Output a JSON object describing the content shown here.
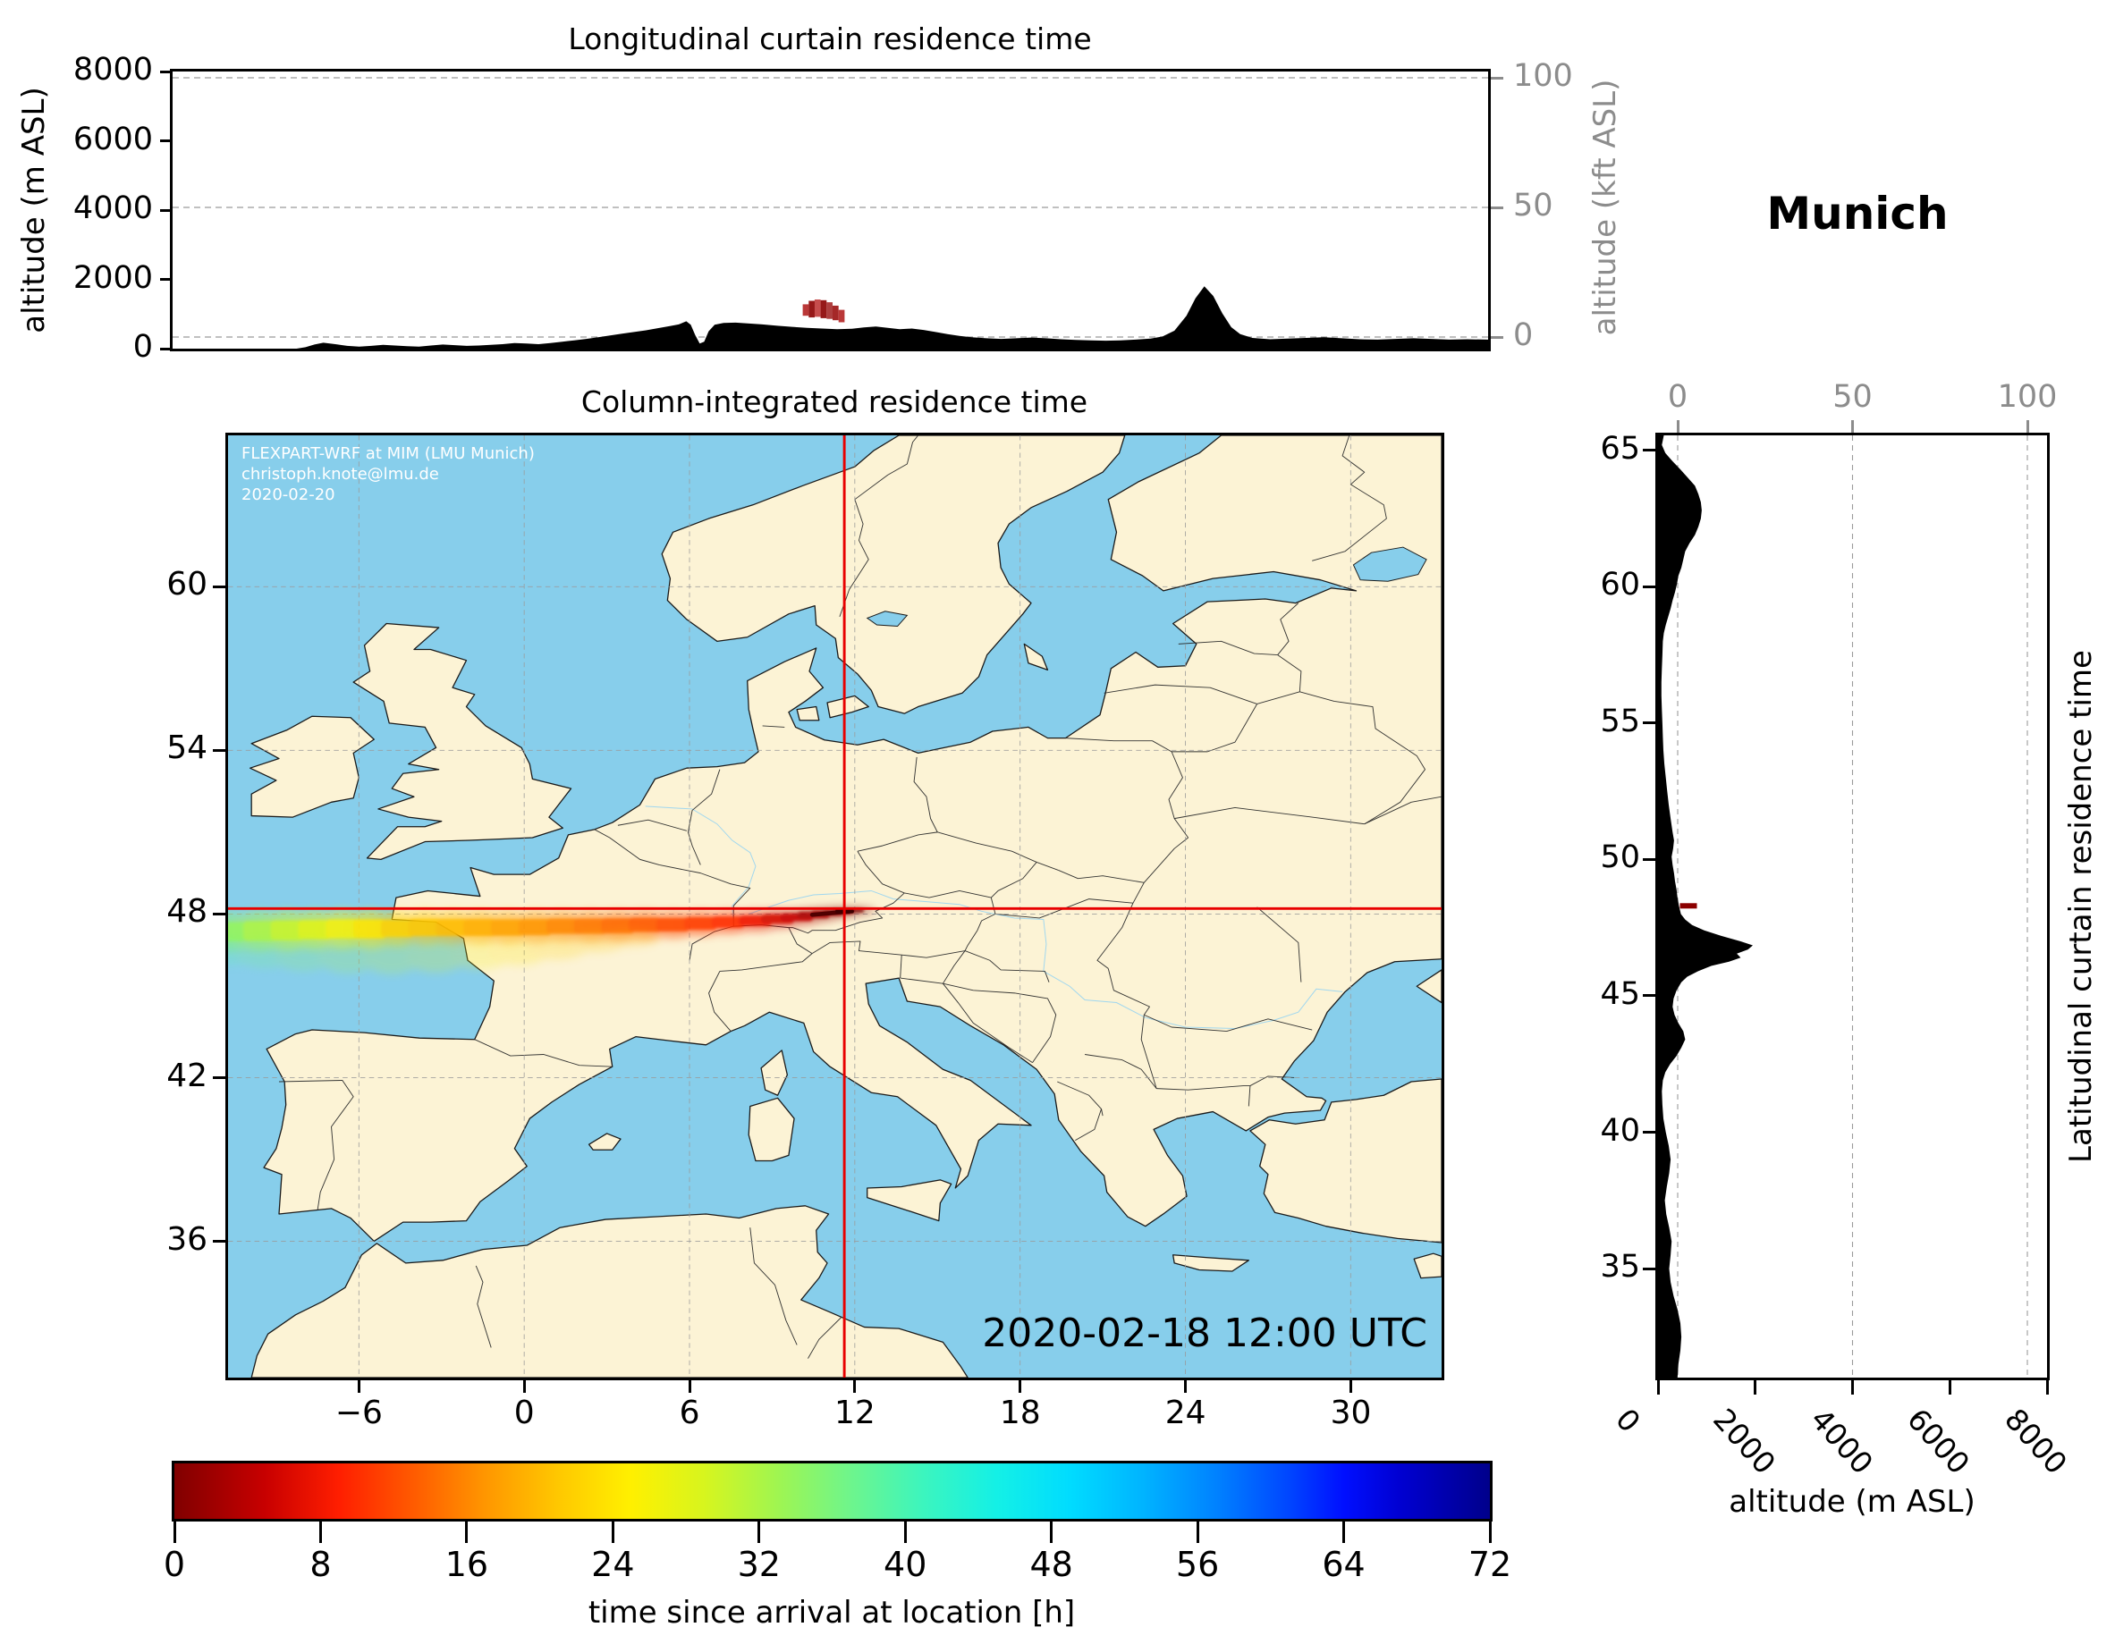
{
  "figure": {
    "station_label": "Munich",
    "timestamp": "2020-02-18 12:00 UTC",
    "attribution": [
      "FLEXPART-WRF at MIM (LMU Munich)",
      "christoph.knote@lmu.de",
      "2020-02-20"
    ]
  },
  "top_panel": {
    "title": "Longitudinal curtain residence time",
    "ylabel_left": "altitude (m ASL)",
    "ylabel_right": "altitude (kft ASL)",
    "yticks_left": [
      8000,
      6000,
      4000,
      2000,
      0
    ],
    "yticks_right": [
      100,
      50,
      0
    ]
  },
  "map_panel": {
    "title": "Column-integrated residence time",
    "lon_ticks": [
      -6,
      0,
      6,
      12,
      18,
      24,
      30
    ],
    "lat_ticks": [
      60,
      54,
      48,
      42,
      36
    ]
  },
  "right_panel": {
    "ylabel": "Latitudinal curtain residence time",
    "xlabel": "altitude (m ASL)",
    "kft_ticks": [
      0,
      50,
      100
    ],
    "lat_ticks": [
      65,
      60,
      55,
      50,
      45,
      40,
      35
    ],
    "alt_ticks": [
      0,
      2000,
      4000,
      6000,
      8000
    ]
  },
  "colorbar": {
    "label": "time since arrival at location [h]",
    "ticks": [
      0,
      8,
      16,
      24,
      32,
      40,
      48,
      56,
      64,
      72
    ],
    "range": [
      0,
      72
    ],
    "stops": [
      [
        0,
        "#800000"
      ],
      [
        5,
        "#c80000"
      ],
      [
        9,
        "#ff1e00"
      ],
      [
        13,
        "#ff5a00"
      ],
      [
        17,
        "#ff9600"
      ],
      [
        21,
        "#ffc800"
      ],
      [
        25,
        "#fff000"
      ],
      [
        29,
        "#d7f51e"
      ],
      [
        33,
        "#a0f550"
      ],
      [
        37,
        "#6ef58c"
      ],
      [
        41,
        "#3cf5be"
      ],
      [
        45,
        "#14f0e6"
      ],
      [
        49,
        "#00dcff"
      ],
      [
        53,
        "#00b4ff"
      ],
      [
        57,
        "#0082ff"
      ],
      [
        61,
        "#0046ff"
      ],
      [
        64,
        "#000fff"
      ],
      [
        67,
        "#0000d2"
      ],
      [
        72,
        "#00008b"
      ]
    ]
  },
  "colors": {
    "ocean": "#87ceeb",
    "land": "#fcf3d5",
    "coast": "#1a1a1a",
    "grid": "#9a9a9a",
    "crosshair": "#e80000",
    "terrain": "#000000",
    "kft_axis": "#8c8c8c",
    "release": "#8b0000"
  },
  "chart_data": [
    {
      "id": "longitudinal_curtain_residence_time",
      "type": "area",
      "title": "Longitudinal curtain residence time",
      "x_axis": "longitude (deg E)",
      "x_range": [
        -10.75,
        33.3
      ],
      "y_range_m": [
        0,
        8000
      ],
      "kft_ticks": [
        0,
        50,
        100
      ],
      "terrain_m": [
        [
          -10.75,
          0
        ],
        [
          -6.6,
          0
        ],
        [
          -6.3,
          40
        ],
        [
          -6.0,
          120
        ],
        [
          -5.7,
          170
        ],
        [
          -5.3,
          130
        ],
        [
          -4.9,
          80
        ],
        [
          -4.5,
          60
        ],
        [
          -4.1,
          80
        ],
        [
          -3.7,
          110
        ],
        [
          -3.3,
          90
        ],
        [
          -2.9,
          70
        ],
        [
          -2.5,
          60
        ],
        [
          -2.1,
          90
        ],
        [
          -1.7,
          120
        ],
        [
          -1.3,
          100
        ],
        [
          -0.9,
          80
        ],
        [
          -0.5,
          90
        ],
        [
          -0.1,
          110
        ],
        [
          0.3,
          130
        ],
        [
          0.7,
          160
        ],
        [
          1.1,
          150
        ],
        [
          1.5,
          130
        ],
        [
          1.9,
          160
        ],
        [
          2.3,
          200
        ],
        [
          2.7,
          240
        ],
        [
          3.1,
          280
        ],
        [
          3.5,
          330
        ],
        [
          3.9,
          380
        ],
        [
          4.3,
          430
        ],
        [
          4.7,
          480
        ],
        [
          5.1,
          530
        ],
        [
          5.5,
          590
        ],
        [
          5.9,
          650
        ],
        [
          6.2,
          700
        ],
        [
          6.45,
          790
        ],
        [
          6.6,
          690
        ],
        [
          6.75,
          390
        ],
        [
          6.9,
          150
        ],
        [
          7.05,
          200
        ],
        [
          7.2,
          500
        ],
        [
          7.4,
          690
        ],
        [
          7.7,
          740
        ],
        [
          8.1,
          750
        ],
        [
          8.5,
          730
        ],
        [
          9.0,
          700
        ],
        [
          9.5,
          660
        ],
        [
          10.0,
          630
        ],
        [
          10.5,
          600
        ],
        [
          11.0,
          580
        ],
        [
          11.5,
          560
        ],
        [
          12.0,
          575
        ],
        [
          12.4,
          615
        ],
        [
          12.8,
          640
        ],
        [
          13.2,
          600
        ],
        [
          13.6,
          560
        ],
        [
          14.0,
          580
        ],
        [
          14.4,
          540
        ],
        [
          14.8,
          480
        ],
        [
          15.2,
          420
        ],
        [
          15.6,
          370
        ],
        [
          16.0,
          330
        ],
        [
          16.5,
          300
        ],
        [
          17.0,
          280
        ],
        [
          17.5,
          300
        ],
        [
          18.0,
          320
        ],
        [
          18.5,
          300
        ],
        [
          19.0,
          270
        ],
        [
          19.5,
          250
        ],
        [
          20.0,
          240
        ],
        [
          20.5,
          230
        ],
        [
          21.0,
          240
        ],
        [
          21.5,
          260
        ],
        [
          22.0,
          290
        ],
        [
          22.4,
          350
        ],
        [
          22.8,
          520
        ],
        [
          23.2,
          950
        ],
        [
          23.5,
          1450
        ],
        [
          23.8,
          1800
        ],
        [
          24.1,
          1520
        ],
        [
          24.4,
          1020
        ],
        [
          24.7,
          620
        ],
        [
          25.0,
          420
        ],
        [
          25.4,
          310
        ],
        [
          26.0,
          270
        ],
        [
          26.6,
          290
        ],
        [
          27.2,
          310
        ],
        [
          27.8,
          330
        ],
        [
          28.4,
          300
        ],
        [
          29.0,
          270
        ],
        [
          29.6,
          260
        ],
        [
          30.2,
          280
        ],
        [
          30.8,
          300
        ],
        [
          31.4,
          280
        ],
        [
          32.0,
          260
        ],
        [
          32.6,
          270
        ],
        [
          33.3,
          260
        ]
      ],
      "release_blocks": [
        [
          10.35,
          10.55,
          950,
          1280,
          "#b22222"
        ],
        [
          10.55,
          10.75,
          900,
          1380,
          "#8b0000"
        ],
        [
          10.75,
          10.95,
          920,
          1420,
          "#c03a3a"
        ],
        [
          10.95,
          11.15,
          880,
          1400,
          "#8b0000"
        ],
        [
          11.15,
          11.35,
          860,
          1340,
          "#a52a2a"
        ],
        [
          11.35,
          11.55,
          820,
          1240,
          "#9b1111"
        ],
        [
          11.55,
          11.75,
          760,
          1120,
          "#b22222"
        ]
      ]
    },
    {
      "id": "column_integrated_residence_time",
      "type": "heatmap",
      "title": "Column-integrated residence time",
      "lon_range": [
        -10.75,
        33.3
      ],
      "lat_range": [
        31.0,
        65.55
      ],
      "crosshair": {
        "lon": 11.62,
        "lat": 48.2
      },
      "plume_points": [
        [
          -10.7,
          47.35,
          0.5,
          34
        ],
        [
          -9.6,
          47.38,
          0.52,
          32
        ],
        [
          -8.6,
          47.4,
          0.52,
          30
        ],
        [
          -7.6,
          47.42,
          0.5,
          28
        ],
        [
          -6.6,
          47.45,
          0.5,
          26
        ],
        [
          -5.6,
          47.45,
          0.5,
          24
        ],
        [
          -4.6,
          47.47,
          0.46,
          22
        ],
        [
          -3.6,
          47.5,
          0.45,
          21
        ],
        [
          -2.6,
          47.5,
          0.44,
          20
        ],
        [
          -1.6,
          47.5,
          0.44,
          19
        ],
        [
          -0.6,
          47.5,
          0.43,
          18
        ],
        [
          0.4,
          47.52,
          0.42,
          17
        ],
        [
          1.4,
          47.55,
          0.4,
          16
        ],
        [
          2.4,
          47.55,
          0.4,
          15
        ],
        [
          3.4,
          47.57,
          0.39,
          14
        ],
        [
          4.4,
          47.6,
          0.37,
          13
        ],
        [
          5.4,
          47.6,
          0.35,
          12
        ],
        [
          6.4,
          47.65,
          0.33,
          11
        ],
        [
          7.4,
          47.7,
          0.3,
          10
        ],
        [
          8.4,
          47.75,
          0.27,
          8
        ],
        [
          9.2,
          47.82,
          0.24,
          6
        ],
        [
          9.9,
          47.88,
          0.2,
          5
        ],
        [
          10.5,
          47.96,
          0.17,
          3
        ],
        [
          11.0,
          48.03,
          0.14,
          2
        ],
        [
          11.4,
          48.08,
          0.12,
          1
        ],
        [
          11.75,
          48.12,
          0.1,
          0
        ]
      ],
      "faint_plume_points": [
        [
          -10.7,
          46.6,
          0.4,
          38
        ],
        [
          -9.4,
          46.55,
          0.45,
          36
        ],
        [
          -8.0,
          46.5,
          0.5,
          34
        ],
        [
          -6.4,
          46.48,
          0.55,
          32
        ],
        [
          -4.8,
          46.45,
          0.55,
          30
        ],
        [
          -3.2,
          46.45,
          0.5,
          28
        ],
        [
          -1.6,
          46.5,
          0.45,
          26
        ],
        [
          -0.2,
          46.6,
          0.4,
          24
        ],
        [
          1.2,
          46.75,
          0.35,
          22
        ],
        [
          2.6,
          46.95,
          0.3,
          21
        ],
        [
          3.8,
          47.1,
          0.25,
          20
        ]
      ]
    },
    {
      "id": "latitudinal_curtain_residence_time",
      "type": "area",
      "y_axis": "latitude (deg N)",
      "lat_range": [
        31.0,
        65.55
      ],
      "alt_range_m": [
        0,
        8000
      ],
      "kft_ticks": [
        0,
        50,
        100
      ],
      "terrain_m": [
        [
          65.55,
          120
        ],
        [
          65.2,
          80
        ],
        [
          64.9,
          150
        ],
        [
          64.6,
          300
        ],
        [
          64.3,
          460
        ],
        [
          64.0,
          610
        ],
        [
          63.7,
          760
        ],
        [
          63.4,
          830
        ],
        [
          63.1,
          880
        ],
        [
          62.8,
          900
        ],
        [
          62.5,
          880
        ],
        [
          62.2,
          830
        ],
        [
          61.9,
          760
        ],
        [
          61.6,
          650
        ],
        [
          61.3,
          560
        ],
        [
          61.0,
          520
        ],
        [
          60.7,
          480
        ],
        [
          60.4,
          420
        ],
        [
          60.1,
          390
        ],
        [
          59.8,
          350
        ],
        [
          59.5,
          300
        ],
        [
          59.2,
          260
        ],
        [
          58.9,
          210
        ],
        [
          58.6,
          160
        ],
        [
          58.3,
          120
        ],
        [
          58.0,
          100
        ],
        [
          57.5,
          90
        ],
        [
          57.0,
          80
        ],
        [
          56.5,
          70
        ],
        [
          56.0,
          70
        ],
        [
          55.5,
          80
        ],
        [
          55.0,
          90
        ],
        [
          54.5,
          100
        ],
        [
          54.0,
          110
        ],
        [
          53.5,
          130
        ],
        [
          53.0,
          160
        ],
        [
          52.5,
          190
        ],
        [
          52.0,
          220
        ],
        [
          51.5,
          260
        ],
        [
          51.0,
          300
        ],
        [
          50.7,
          330
        ],
        [
          50.4,
          310
        ],
        [
          50.1,
          280
        ],
        [
          49.8,
          300
        ],
        [
          49.5,
          330
        ],
        [
          49.2,
          350
        ],
        [
          48.9,
          380
        ],
        [
          48.6,
          400
        ],
        [
          48.3,
          430
        ],
        [
          48.0,
          470
        ],
        [
          47.8,
          560
        ],
        [
          47.6,
          700
        ],
        [
          47.4,
          950
        ],
        [
          47.2,
          1300
        ],
        [
          47.0,
          1700
        ],
        [
          46.85,
          1950
        ],
        [
          46.7,
          1850
        ],
        [
          46.55,
          1620
        ],
        [
          46.4,
          1700
        ],
        [
          46.25,
          1460
        ],
        [
          46.1,
          1100
        ],
        [
          45.9,
          820
        ],
        [
          45.7,
          600
        ],
        [
          45.5,
          480
        ],
        [
          45.2,
          380
        ],
        [
          44.9,
          320
        ],
        [
          44.6,
          300
        ],
        [
          44.3,
          340
        ],
        [
          44.0,
          420
        ],
        [
          43.7,
          520
        ],
        [
          43.4,
          560
        ],
        [
          43.1,
          480
        ],
        [
          42.8,
          380
        ],
        [
          42.5,
          250
        ],
        [
          42.2,
          150
        ],
        [
          41.9,
          100
        ],
        [
          41.5,
          80
        ],
        [
          41.0,
          90
        ],
        [
          40.5,
          110
        ],
        [
          40.0,
          160
        ],
        [
          39.5,
          220
        ],
        [
          39.0,
          260
        ],
        [
          38.5,
          230
        ],
        [
          38.0,
          180
        ],
        [
          37.5,
          140
        ],
        [
          37.0,
          170
        ],
        [
          36.5,
          230
        ],
        [
          36.0,
          280
        ],
        [
          35.5,
          260
        ],
        [
          35.0,
          230
        ],
        [
          34.5,
          260
        ],
        [
          34.0,
          320
        ],
        [
          33.5,
          400
        ],
        [
          33.0,
          460
        ],
        [
          32.5,
          480
        ],
        [
          32.0,
          460
        ],
        [
          31.5,
          420
        ],
        [
          31.0,
          400
        ]
      ],
      "release": {
        "lat": 48.3,
        "alt_range": [
          450,
          800
        ]
      }
    }
  ]
}
